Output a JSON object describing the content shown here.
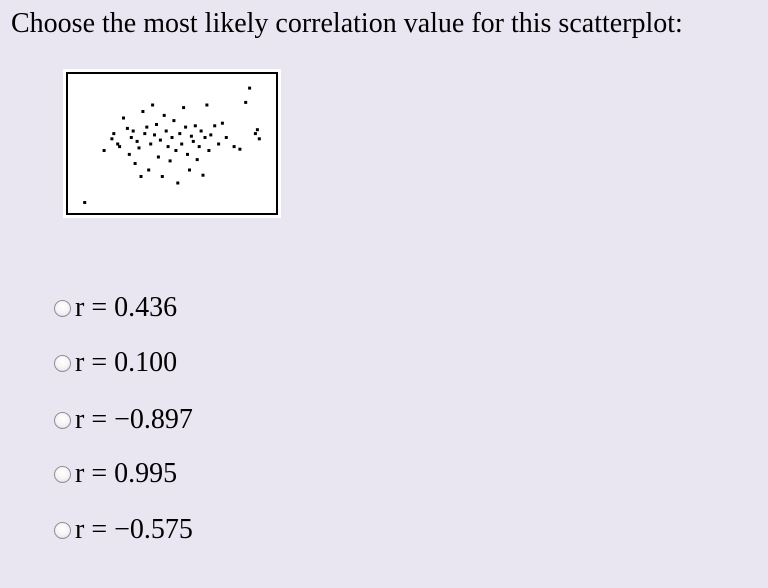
{
  "question": {
    "text": "Choose the most likely correlation value for this scatterplot:"
  },
  "options": [
    {
      "label": "r = 0.436",
      "selected": false
    },
    {
      "label": "r = 0.100",
      "selected": false
    },
    {
      "label": "r = −0.897",
      "selected": false
    },
    {
      "label": "r = 0.995",
      "selected": false
    },
    {
      "label": "r = −0.575",
      "selected": false
    }
  ],
  "chart_data": {
    "type": "scatter",
    "title": "",
    "xlabel": "",
    "ylabel": "",
    "grid": false,
    "legend": "none",
    "xlim": [
      0,
      100
    ],
    "ylim": [
      0,
      100
    ],
    "marker_color": "#000000",
    "points": [
      [
        5,
        5
      ],
      [
        15,
        45
      ],
      [
        19,
        54
      ],
      [
        20,
        58
      ],
      [
        22,
        50
      ],
      [
        23,
        48
      ],
      [
        25,
        70
      ],
      [
        27,
        62
      ],
      [
        28,
        42
      ],
      [
        29,
        55
      ],
      [
        30,
        60
      ],
      [
        31,
        35
      ],
      [
        32,
        52
      ],
      [
        33,
        47
      ],
      [
        34,
        25
      ],
      [
        35,
        75
      ],
      [
        36,
        58
      ],
      [
        37,
        63
      ],
      [
        38,
        30
      ],
      [
        39,
        50
      ],
      [
        40,
        80
      ],
      [
        41,
        57
      ],
      [
        42,
        65
      ],
      [
        43,
        40
      ],
      [
        44,
        53
      ],
      [
        45,
        25
      ],
      [
        46,
        72
      ],
      [
        47,
        60
      ],
      [
        48,
        48
      ],
      [
        49,
        37
      ],
      [
        50,
        55
      ],
      [
        51,
        68
      ],
      [
        52,
        45
      ],
      [
        53,
        20
      ],
      [
        54,
        58
      ],
      [
        55,
        50
      ],
      [
        56,
        78
      ],
      [
        57,
        63
      ],
      [
        58,
        42
      ],
      [
        59,
        30
      ],
      [
        60,
        56
      ],
      [
        61,
        52
      ],
      [
        62,
        64
      ],
      [
        63,
        38
      ],
      [
        64,
        48
      ],
      [
        65,
        60
      ],
      [
        66,
        26
      ],
      [
        67,
        55
      ],
      [
        68,
        80
      ],
      [
        69,
        45
      ],
      [
        70,
        57
      ],
      [
        72,
        64
      ],
      [
        74,
        50
      ],
      [
        76,
        66
      ],
      [
        78,
        55
      ],
      [
        82,
        48
      ],
      [
        88,
        82
      ],
      [
        90,
        93
      ],
      [
        93,
        58
      ],
      [
        94,
        61
      ],
      [
        95,
        54
      ],
      [
        85,
        46
      ]
    ]
  }
}
